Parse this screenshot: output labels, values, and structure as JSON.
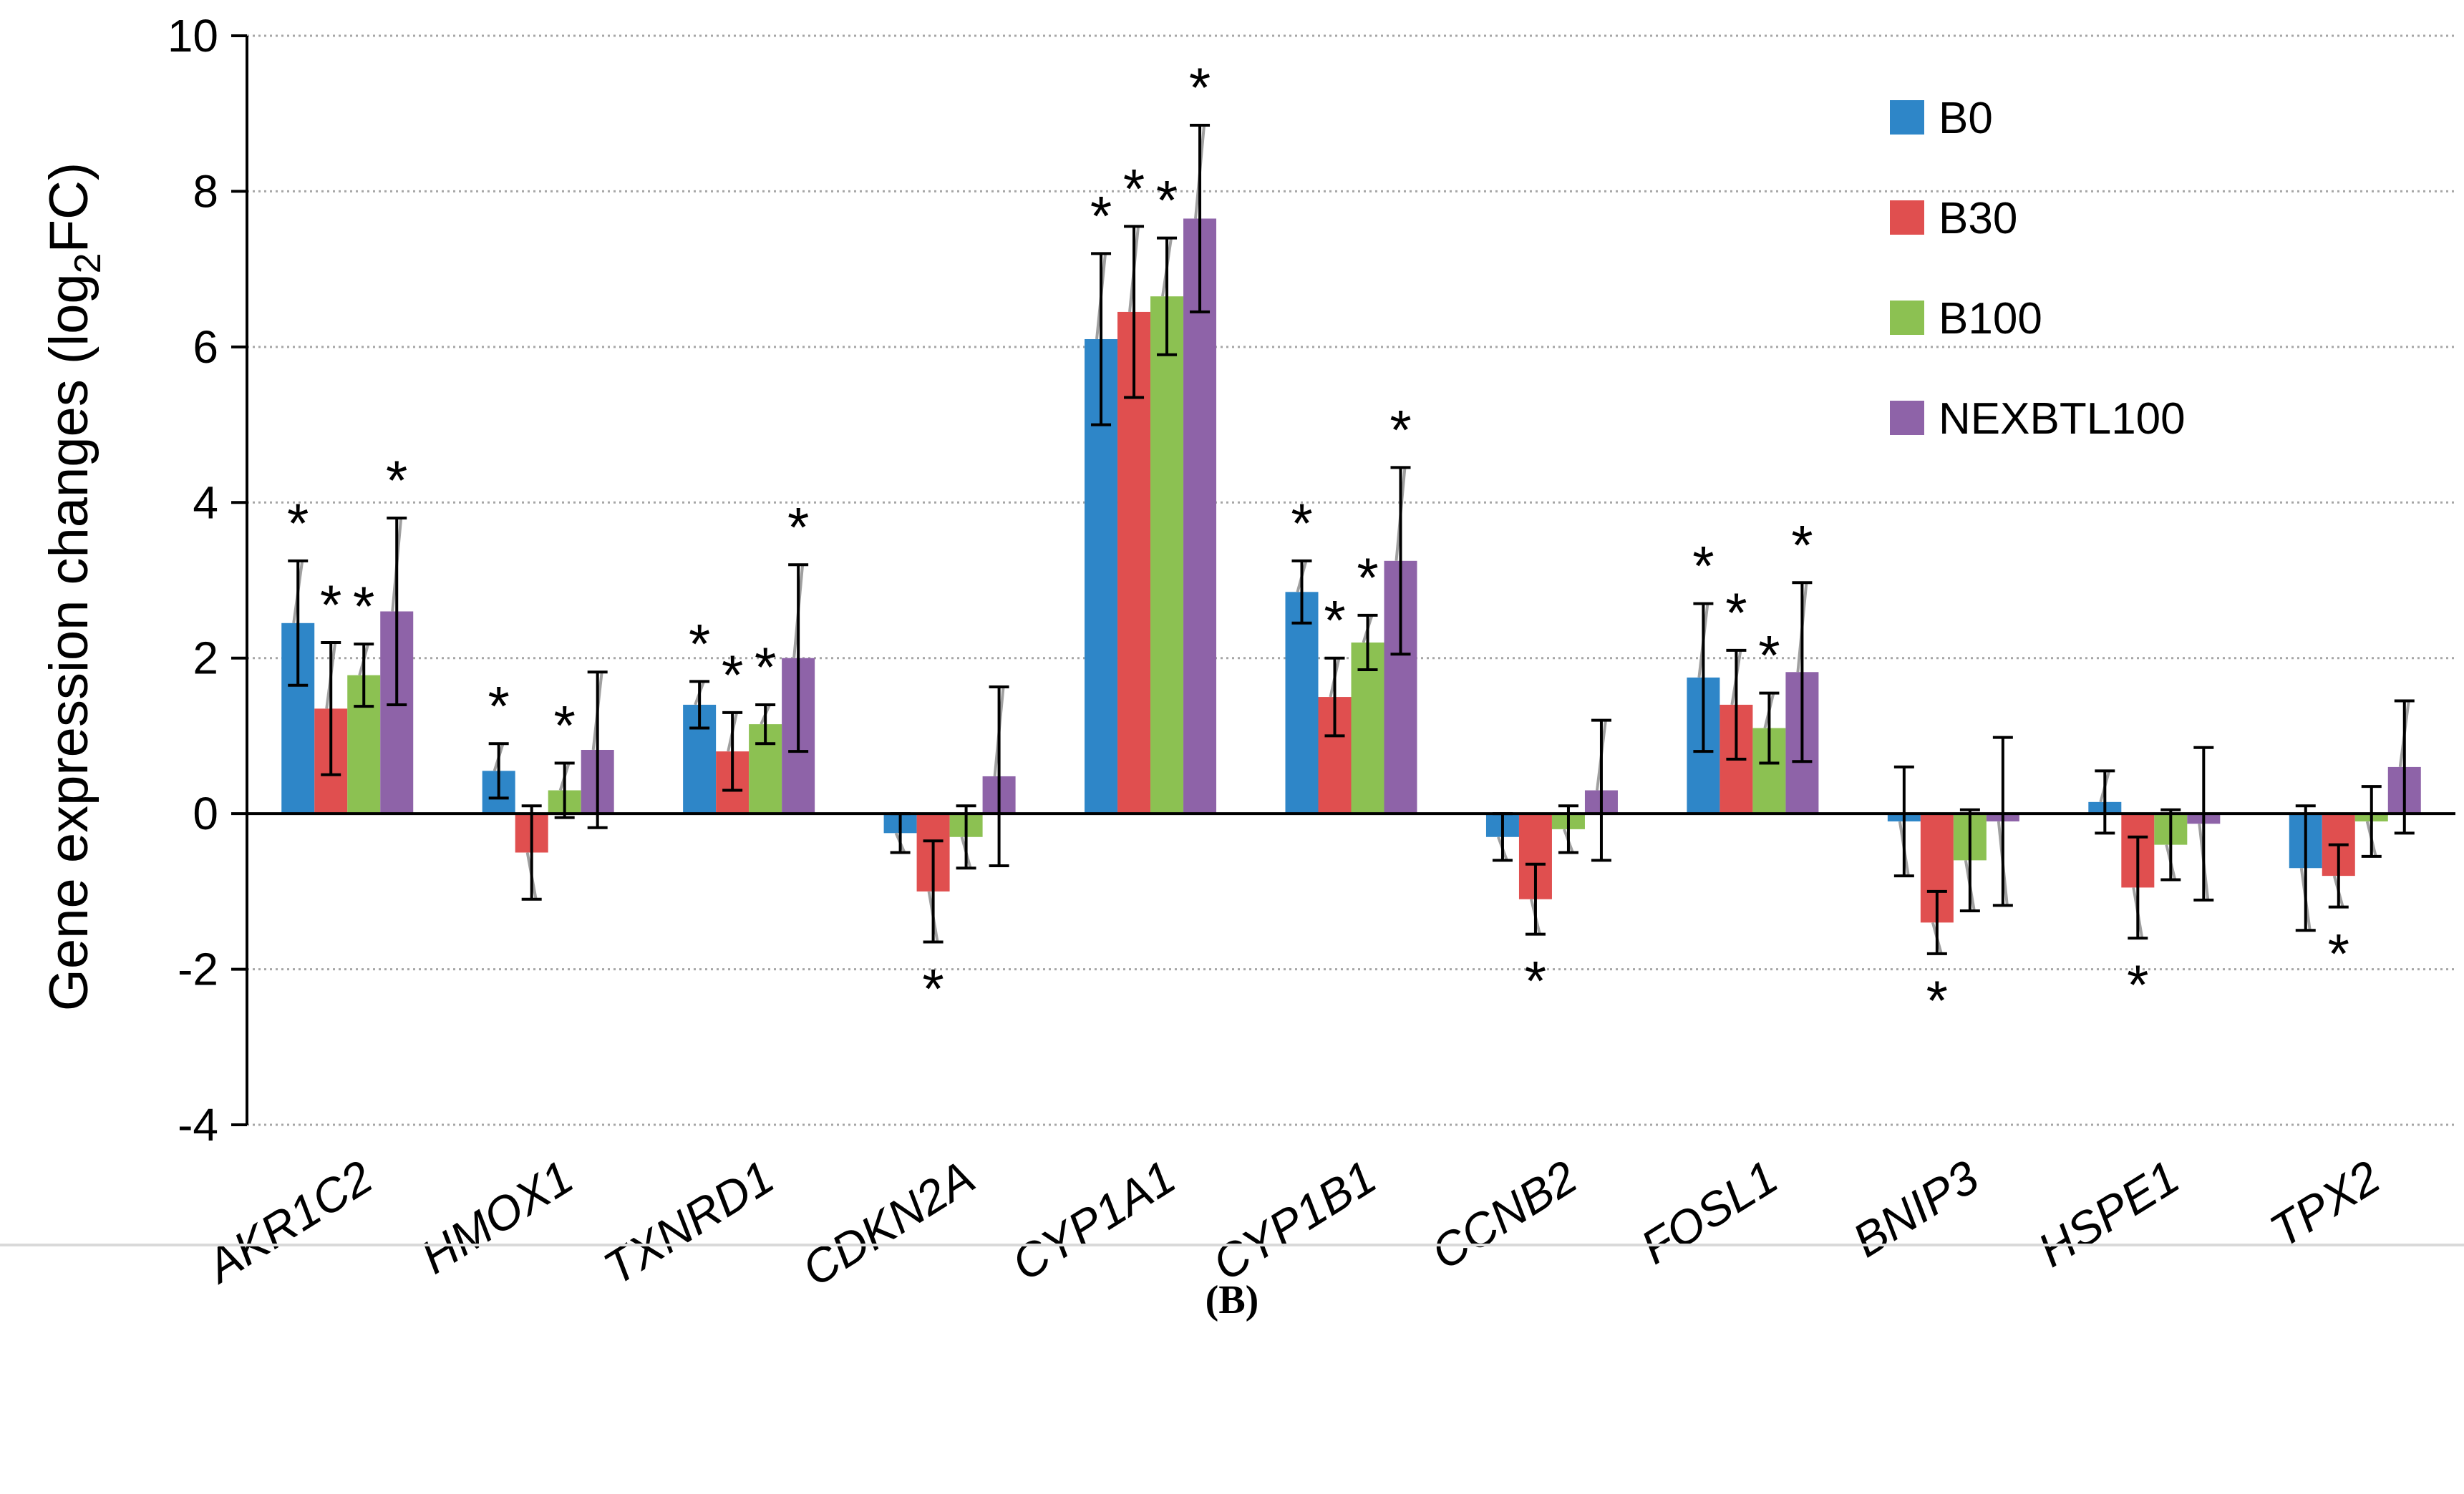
{
  "panel_label": "(B)",
  "colors": {
    "B0": "#2e86c8",
    "B30": "#e04f4f",
    "B100": "#8cc152",
    "NEXBTL100": "#8e63a8",
    "grid": "#a6a6a6",
    "error_bar": "#000000",
    "sd_line": "#a0a0a0"
  },
  "chart_data": {
    "type": "bar",
    "title": "",
    "xlabel": "",
    "ylabel_main": "Gene expression changes (log",
    "ylabel_sub": "2",
    "ylabel_end": "FC)",
    "ylim": [
      -4,
      10
    ],
    "yticks": [
      -4,
      -2,
      0,
      2,
      4,
      6,
      8,
      10
    ],
    "ytick_labels": [
      "-4",
      "-2",
      "0",
      "2",
      "4",
      "6",
      "8",
      "10"
    ],
    "grid": true,
    "legend_position": "top-right",
    "significance_marker": "*",
    "categories": [
      "AKR1C2",
      "HMOX1",
      "TXNRD1",
      "CDKN2A",
      "CYP1A1",
      "CYP1B1",
      "CCNB2",
      "FOSL1",
      "BNIP3",
      "HSPE1",
      "TPX2"
    ],
    "series": [
      {
        "name": "B0",
        "values": [
          2.45,
          0.55,
          1.4,
          -0.25,
          6.1,
          2.85,
          -0.3,
          1.75,
          -0.1,
          0.15,
          -0.7
        ],
        "errors": [
          0.8,
          0.35,
          0.3,
          0.25,
          1.1,
          0.4,
          0.3,
          0.95,
          0.7,
          0.4,
          0.8
        ],
        "significant": [
          true,
          true,
          true,
          false,
          true,
          true,
          false,
          true,
          false,
          false,
          false
        ]
      },
      {
        "name": "B30",
        "values": [
          1.35,
          -0.5,
          0.8,
          -1.0,
          6.45,
          1.5,
          -1.1,
          1.4,
          -1.4,
          -0.95,
          -0.8
        ],
        "errors": [
          0.85,
          0.6,
          0.5,
          0.65,
          1.1,
          0.5,
          0.45,
          0.7,
          0.4,
          0.65,
          0.4
        ],
        "significant": [
          true,
          false,
          true,
          true,
          true,
          true,
          true,
          true,
          true,
          true,
          true
        ]
      },
      {
        "name": "B100",
        "values": [
          1.78,
          0.3,
          1.15,
          -0.3,
          6.65,
          2.2,
          -0.2,
          1.1,
          -0.6,
          -0.4,
          -0.1
        ],
        "errors": [
          0.4,
          0.35,
          0.25,
          0.4,
          0.75,
          0.35,
          0.3,
          0.45,
          0.65,
          0.45,
          0.45
        ],
        "significant": [
          true,
          true,
          true,
          false,
          true,
          true,
          false,
          true,
          false,
          false,
          false
        ]
      },
      {
        "name": "NEXBTL100",
        "values": [
          2.6,
          0.82,
          2.0,
          0.48,
          7.65,
          3.25,
          0.3,
          1.82,
          -0.1,
          -0.13,
          0.6
        ],
        "errors": [
          1.2,
          1.0,
          1.2,
          1.15,
          1.2,
          1.2,
          0.9,
          1.15,
          1.08,
          0.98,
          0.85
        ],
        "significant": [
          true,
          false,
          true,
          false,
          true,
          true,
          false,
          true,
          false,
          false,
          false
        ]
      }
    ]
  }
}
